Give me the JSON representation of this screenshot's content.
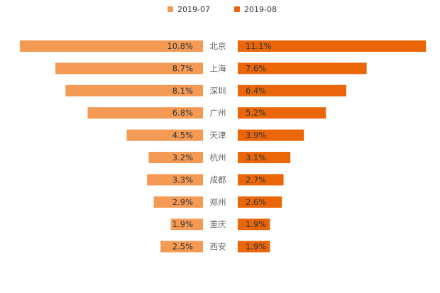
{
  "colors": {
    "left": "#f49a55",
    "right": "#ea6608",
    "label_text": "#333333",
    "category_text": "#666666"
  },
  "chart_data": {
    "type": "bar",
    "subtype": "butterfly",
    "categories": [
      "北京",
      "上海",
      "深圳",
      "广州",
      "天津",
      "杭州",
      "成都",
      "郑州",
      "重庆",
      "西安"
    ],
    "series": [
      {
        "name": "2019-07",
        "values": [
          10.8,
          8.7,
          8.1,
          6.8,
          4.5,
          3.2,
          3.3,
          2.9,
          1.9,
          2.5
        ],
        "labels": [
          "10.8%",
          "8.7%",
          "8.1%",
          "6.8%",
          "4.5%",
          "3.2%",
          "3.3%",
          "2.9%",
          "1.9%",
          "2.5%"
        ]
      },
      {
        "name": "2019-08",
        "values": [
          11.1,
          7.6,
          6.4,
          5.2,
          3.9,
          3.1,
          2.7,
          2.6,
          1.9,
          1.9
        ],
        "labels": [
          "11.1%",
          "7.6%",
          "6.4%",
          "5.2%",
          "3.9%",
          "3.1%",
          "2.7%",
          "2.6%",
          "1.9%",
          "1.9%"
        ]
      }
    ],
    "legend_position": "top-center"
  }
}
